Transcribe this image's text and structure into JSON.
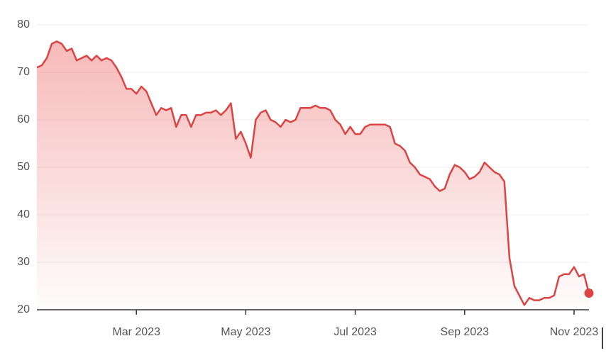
{
  "chart_data": {
    "type": "area",
    "categories": [
      null,
      null,
      null,
      null,
      null,
      null,
      null,
      null,
      null,
      null,
      null,
      null,
      null,
      null,
      null,
      null,
      null,
      null,
      null,
      null,
      "Mar 2023",
      null,
      null,
      null,
      null,
      null,
      null,
      null,
      null,
      null,
      null,
      null,
      null,
      null,
      null,
      null,
      null,
      null,
      null,
      null,
      null,
      null,
      "May 2023",
      null,
      null,
      null,
      null,
      null,
      null,
      null,
      null,
      null,
      null,
      null,
      null,
      null,
      null,
      null,
      null,
      null,
      null,
      null,
      null,
      null,
      "Jul 2023",
      null,
      null,
      null,
      null,
      null,
      null,
      null,
      null,
      null,
      null,
      null,
      null,
      null,
      null,
      null,
      null,
      null,
      null,
      null,
      null,
      null,
      "Sep 2023",
      null,
      null,
      null,
      null,
      null,
      null,
      null,
      null,
      null,
      null,
      null,
      null,
      null,
      null,
      null,
      null,
      null,
      null,
      null,
      null,
      null,
      "Nov 2023",
      null,
      null,
      null
    ],
    "values": [
      71,
      71.5,
      73,
      76,
      76.5,
      76,
      74.5,
      75,
      72.5,
      73,
      73.5,
      72.5,
      73.5,
      72.5,
      73,
      72.5,
      71,
      69,
      66.5,
      66.5,
      65.5,
      67,
      66,
      63.5,
      61,
      62.5,
      62,
      62.5,
      58.5,
      61,
      61,
      58.5,
      61,
      61,
      61.5,
      61.5,
      62,
      61,
      62,
      63.5,
      56,
      57.5,
      55,
      52,
      60,
      61.5,
      62,
      60,
      59.5,
      58.5,
      60,
      59.5,
      60,
      62.5,
      62.5,
      62.5,
      63,
      62.5,
      62.5,
      62,
      60,
      59,
      57,
      58.5,
      57,
      57,
      58.5,
      59,
      59,
      59,
      59,
      58.5,
      55,
      54.5,
      53.5,
      51,
      50,
      48.5,
      48,
      47.5,
      46,
      45,
      45.5,
      48.5,
      50.5,
      50,
      49,
      47.5,
      48,
      49,
      51,
      50,
      49,
      48.5,
      47,
      31,
      25,
      23,
      21,
      22.5,
      22,
      22,
      22.5,
      22.5,
      23,
      27,
      27.5,
      27.5,
      29,
      27,
      27.5,
      23.5
    ],
    "color": "#dc4444",
    "ylim": [
      20,
      80
    ],
    "yticks": [
      20,
      30,
      40,
      50,
      60,
      70,
      80
    ],
    "grid": true
  }
}
